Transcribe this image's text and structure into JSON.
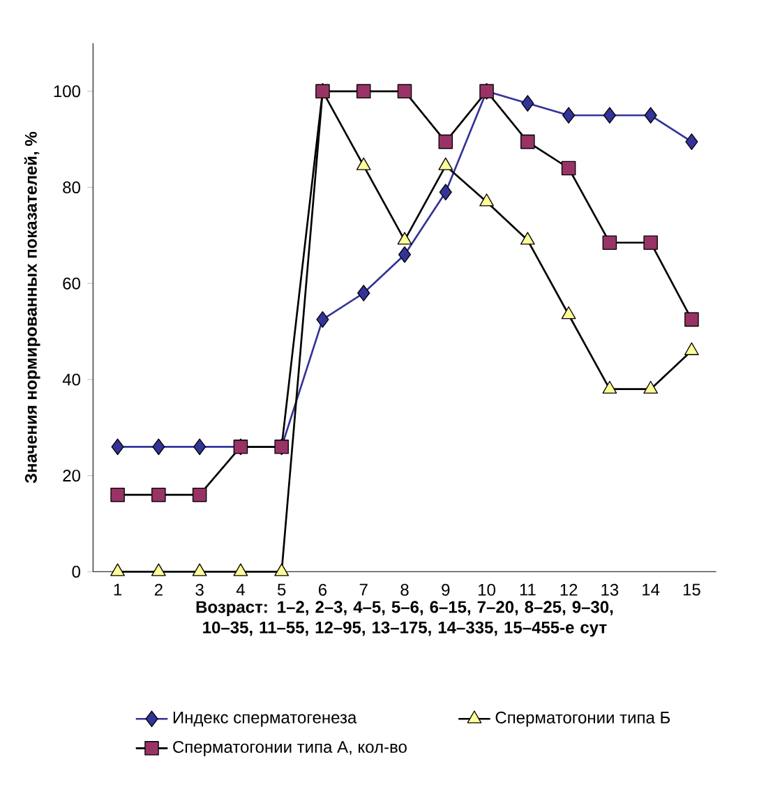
{
  "chart_data": {
    "type": "line",
    "xlabel": "Возраст: 1–2, 2–3, 4–5, 5–6, 6–15, 7–20, 8–25, 9–30, 10–35, 11–55, 12–95, 13–175, 14–335, 15–455-е сут",
    "ylabel": "Значения нормированных показателей, %",
    "categories": [
      "1",
      "2",
      "3",
      "4",
      "5",
      "6",
      "7",
      "8",
      "9",
      "10",
      "11",
      "12",
      "13",
      "14",
      "15"
    ],
    "series": [
      {
        "name": "Индекс сперматогенеза",
        "color": "#333399",
        "marker": "diamond",
        "values": [
          26,
          26,
          26,
          26,
          26,
          52.5,
          58,
          66,
          79,
          100,
          97.5,
          95,
          95,
          95,
          89.5
        ]
      },
      {
        "name": "Сперматогонии типа Б",
        "color": "#ffff99",
        "marker": "triangle",
        "values": [
          0,
          0,
          0,
          0,
          0,
          100,
          84.5,
          69,
          84.5,
          77,
          69,
          53.5,
          38,
          38,
          46
        ]
      },
      {
        "name": "Сперматогонии типа А,   кол-во",
        "color": "#993366",
        "marker": "square",
        "values": [
          16,
          16,
          16,
          26,
          26,
          100,
          100,
          100,
          89.5,
          100,
          89.5,
          84,
          68.5,
          68.5,
          52.5
        ]
      }
    ],
    "ylim": [
      0,
      110
    ],
    "yticks": [
      0,
      20,
      40,
      60,
      80,
      100
    ],
    "grid": false,
    "legend": "bottom",
    "line_style": "solid"
  }
}
